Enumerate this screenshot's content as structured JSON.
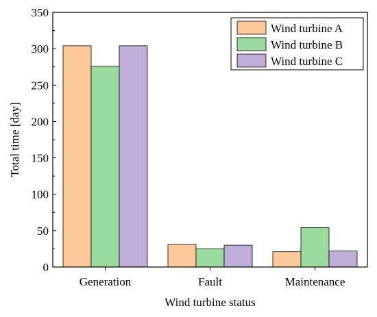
{
  "chart_data": {
    "type": "bar",
    "xlabel": "Wind turbine status",
    "ylabel": "Total time [day]",
    "categories": [
      "Generation",
      "Fault",
      "Maintenance"
    ],
    "series": [
      {
        "name": "Wind turbine A",
        "color": "#FDC998",
        "values": [
          304,
          31,
          21
        ]
      },
      {
        "name": "Wind turbine B",
        "color": "#9CDB9E",
        "values": [
          276,
          25,
          54
        ]
      },
      {
        "name": "Wind turbine C",
        "color": "#BFAED8",
        "values": [
          304,
          30,
          22
        ]
      }
    ],
    "ylim": [
      0,
      350
    ],
    "yticks": [
      0,
      50,
      100,
      150,
      200,
      250,
      300,
      350
    ],
    "legend_position": "top-right",
    "grid": false
  }
}
